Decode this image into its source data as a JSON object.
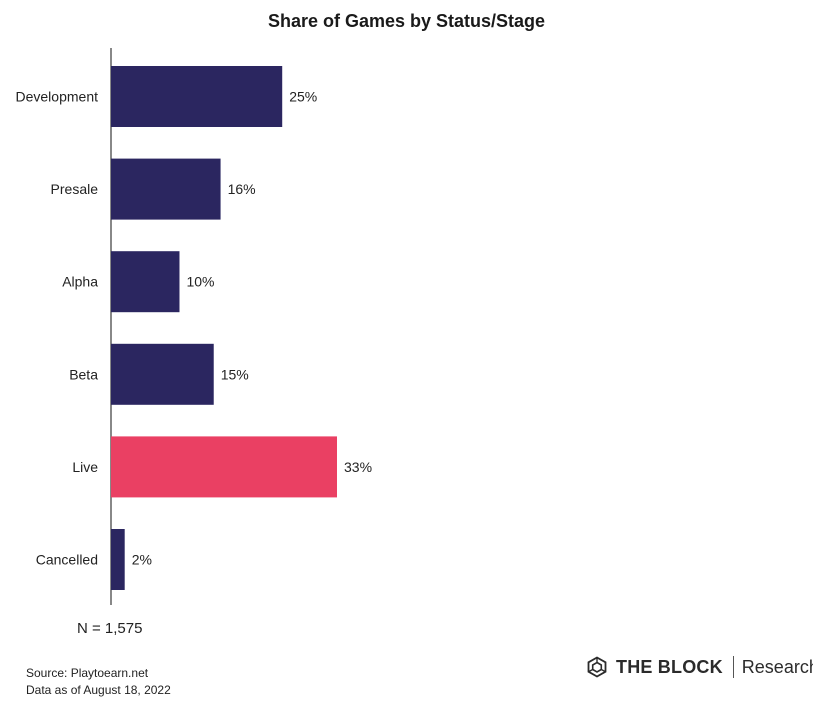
{
  "chart_data": {
    "type": "bar",
    "orientation": "horizontal",
    "title": "Share of Games by Status/Stage",
    "categories": [
      "Development",
      "Presale",
      "Alpha",
      "Beta",
      "Live",
      "Cancelled"
    ],
    "values": [
      25,
      16,
      10,
      15,
      33,
      2
    ],
    "value_labels": [
      "25%",
      "16%",
      "10%",
      "15%",
      "33%",
      "2%"
    ],
    "unit": "%",
    "xlim": [
      0,
      100
    ],
    "grid": false,
    "legend": "none",
    "bar_color": "#2b2660",
    "highlight_color": "#ea4063",
    "highlight_category": "Live"
  },
  "note": "N = 1,575",
  "source": {
    "line1": "Source: Playtoearn.net",
    "line2": "Data as of August 18, 2022"
  },
  "brand": {
    "name": "THE BLOCK",
    "sub": "Research",
    "icon": "cube-logo-icon"
  }
}
